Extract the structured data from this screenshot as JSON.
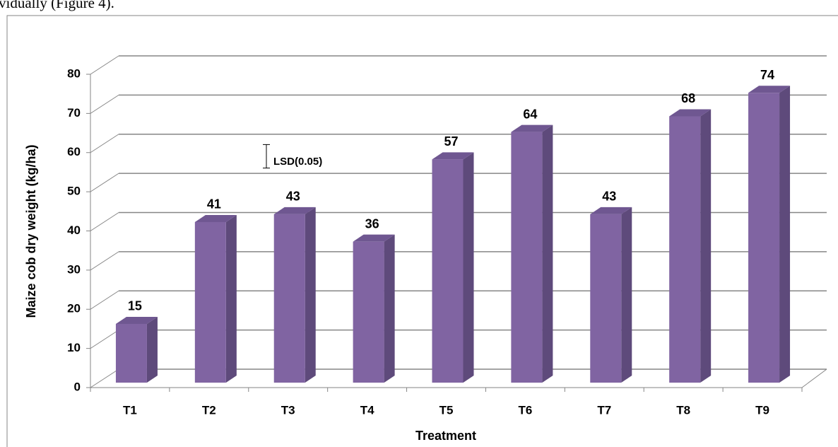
{
  "page_text": "vidually (Figure 4).",
  "chart_data": {
    "type": "bar3d",
    "y_label": "Maize cob dry weight  (kg/ha)",
    "x_label": "Treatment",
    "categories": [
      "T1",
      "T2",
      "T3",
      "T4",
      "T5",
      "T6",
      "T7",
      "T8",
      "T9"
    ],
    "values": [
      15,
      41,
      43,
      36,
      57,
      64,
      43,
      68,
      74
    ],
    "color": "#8064a2",
    "ylim": [
      0,
      80
    ],
    "yticks": [
      0,
      10,
      20,
      30,
      40,
      50,
      60,
      70,
      80
    ],
    "grid": true,
    "lsd": {
      "label": "LSD(0.05)",
      "value": 6
    }
  }
}
